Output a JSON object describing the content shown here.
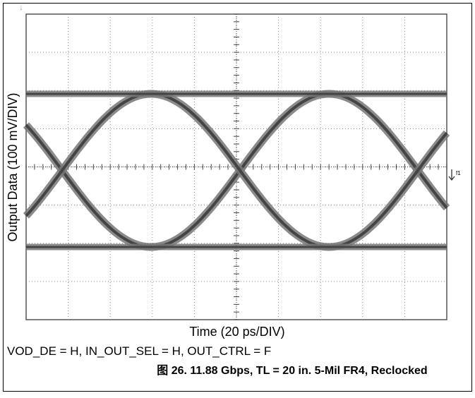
{
  "chart_data": {
    "type": "eye",
    "x_label": "Time (20 ps/DIV)",
    "y_label": "Output Data (100 mV/DIV)",
    "marker_label": "f1",
    "note": "VOD_DE = H, IN_OUT_SEL = H, OUT_CTRL = F",
    "caption": "图 26. 11.88 Gbps, TL = 20 in. 5-Mil FR4, Reclocked"
  }
}
